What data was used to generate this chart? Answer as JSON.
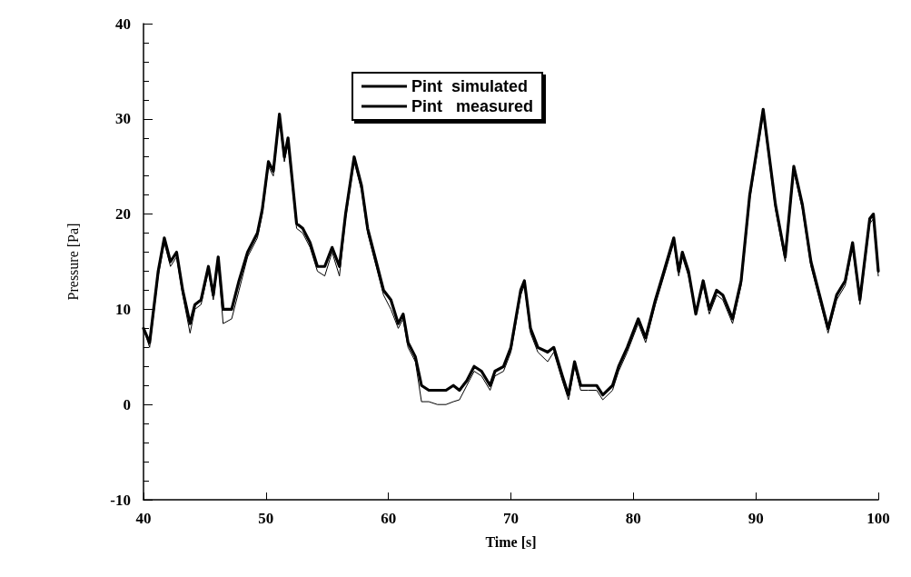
{
  "chart_data": {
    "type": "line",
    "xlabel": "Time [s]",
    "ylabel": "Pressure [Pa]",
    "xlim": [
      40,
      100
    ],
    "xticks": [
      40,
      50,
      60,
      70,
      80,
      90,
      100
    ],
    "ylim": [
      -10,
      40
    ],
    "yticks": [
      -10,
      0,
      10,
      20,
      30,
      40
    ],
    "grid": false,
    "legend": "top",
    "marker": "none",
    "line_style": "solid",
    "series": [
      {
        "name": "Pint  simulated",
        "color": "#000000",
        "x": [
          40,
          40.5,
          41.2,
          41.7,
          42.2,
          42.7,
          43.2,
          43.8,
          44.2,
          44.7,
          45.3,
          45.7,
          46.1,
          46.5,
          47.2,
          47.8,
          48.5,
          49.3,
          49.7,
          50.2,
          50.6,
          51.1,
          51.5,
          51.8,
          52.5,
          53,
          53.6,
          54.2,
          54.8,
          55.4,
          56,
          56.5,
          57.2,
          57.8,
          58.3,
          59,
          59.6,
          60.2,
          60.8,
          61.2,
          61.6,
          62.2,
          62.7,
          63.3,
          64,
          64.7,
          65.3,
          65.8,
          66.4,
          67,
          67.6,
          68.3,
          68.7,
          69.4,
          70,
          70.8,
          71.1,
          71.6,
          72.2,
          73,
          73.5,
          74.2,
          74.7,
          75.2,
          75.7,
          76.3,
          77,
          77.5,
          78.3,
          78.8,
          79.5,
          80.4,
          81,
          81.8,
          82.5,
          83.3,
          83.7,
          84,
          84.5,
          85.1,
          85.7,
          86.2,
          86.8,
          87.3,
          88.1,
          88.8,
          89.5,
          90.3,
          90.6,
          91.2,
          91.6,
          92.4,
          93.1,
          93.8,
          94.5,
          95.3,
          95.9,
          96.6,
          97.3,
          97.9,
          98.5,
          99.3,
          99.6,
          100
        ],
        "values": [
          8,
          6,
          13.5,
          17,
          14.5,
          15.5,
          11.5,
          7.5,
          10,
          10.5,
          14,
          11,
          15,
          8.5,
          9,
          12,
          15.5,
          17.5,
          20,
          25,
          24,
          30,
          25.5,
          27.5,
          18.5,
          18,
          16.5,
          14,
          13.5,
          16,
          13.5,
          19.5,
          25.5,
          22.5,
          18,
          14.5,
          11.5,
          10,
          8,
          9,
          6,
          4.5,
          0.3,
          0.3,
          0,
          0,
          0.3,
          0.5,
          2,
          3.5,
          3,
          1.5,
          3,
          3.5,
          5.5,
          11.5,
          12.5,
          7.5,
          5.5,
          4.5,
          5.5,
          2.5,
          0.5,
          4,
          1.5,
          1.5,
          1.5,
          0.5,
          1.5,
          3.5,
          5.5,
          8.5,
          6.5,
          10.5,
          13.5,
          17,
          13.5,
          15.5,
          13.5,
          9.5,
          12.5,
          9.5,
          11.5,
          11,
          8.5,
          12.5,
          21.5,
          28,
          30.5,
          24.5,
          20.5,
          15,
          24.5,
          20.5,
          14.5,
          10.5,
          7.5,
          11,
          12.5,
          16.5,
          10.5,
          19,
          19.5,
          13.5
        ]
      },
      {
        "name": "Pint   measured",
        "color": "#000000",
        "x": [
          40,
          40.5,
          41.2,
          41.7,
          42.2,
          42.7,
          43.2,
          43.8,
          44.2,
          44.7,
          45.3,
          45.7,
          46.1,
          46.5,
          47.2,
          47.8,
          48.5,
          49.3,
          49.7,
          50.2,
          50.6,
          51.1,
          51.5,
          51.8,
          52.5,
          53,
          53.6,
          54.2,
          54.8,
          55.4,
          56,
          56.5,
          57.2,
          57.8,
          58.3,
          59,
          59.6,
          60.2,
          60.8,
          61.2,
          61.6,
          62.2,
          62.7,
          63.3,
          64,
          64.7,
          65.3,
          65.8,
          66.4,
          67,
          67.6,
          68.3,
          68.7,
          69.4,
          70,
          70.8,
          71.1,
          71.6,
          72.2,
          73,
          73.5,
          74.2,
          74.7,
          75.2,
          75.7,
          76.3,
          77,
          77.5,
          78.3,
          78.8,
          79.5,
          80.4,
          81,
          81.8,
          82.5,
          83.3,
          83.7,
          84,
          84.5,
          85.1,
          85.7,
          86.2,
          86.8,
          87.3,
          88.1,
          88.8,
          89.5,
          90.3,
          90.6,
          91.2,
          91.6,
          92.4,
          93.1,
          93.8,
          94.5,
          95.3,
          95.9,
          96.6,
          97.3,
          97.9,
          98.5,
          99.3,
          99.6,
          100
        ],
        "values": [
          8,
          6.5,
          14,
          17.5,
          15,
          16,
          12,
          8.5,
          10.5,
          11,
          14.5,
          11.5,
          15.5,
          10,
          10,
          13,
          16,
          18,
          20.5,
          25.5,
          24.5,
          30.5,
          26,
          28,
          19,
          18.5,
          17,
          14.5,
          14.5,
          16.5,
          14.5,
          20,
          26,
          23,
          18.5,
          15,
          12,
          11,
          8.5,
          9.5,
          6.5,
          5,
          2,
          1.5,
          1.5,
          1.5,
          2,
          1.5,
          2.5,
          4,
          3.5,
          2,
          3.5,
          4,
          6,
          12,
          13,
          8,
          6,
          5.5,
          6,
          3,
          1,
          4.5,
          2,
          2,
          2,
          1,
          2,
          4,
          6,
          9,
          7,
          11,
          14,
          17.5,
          14,
          16,
          14,
          9.5,
          13,
          10,
          12,
          11.5,
          9,
          13,
          22,
          28.5,
          31,
          25,
          21,
          15.5,
          25,
          21,
          15,
          11,
          8,
          11.5,
          13,
          17,
          11,
          19.5,
          20,
          14
        ]
      }
    ]
  }
}
